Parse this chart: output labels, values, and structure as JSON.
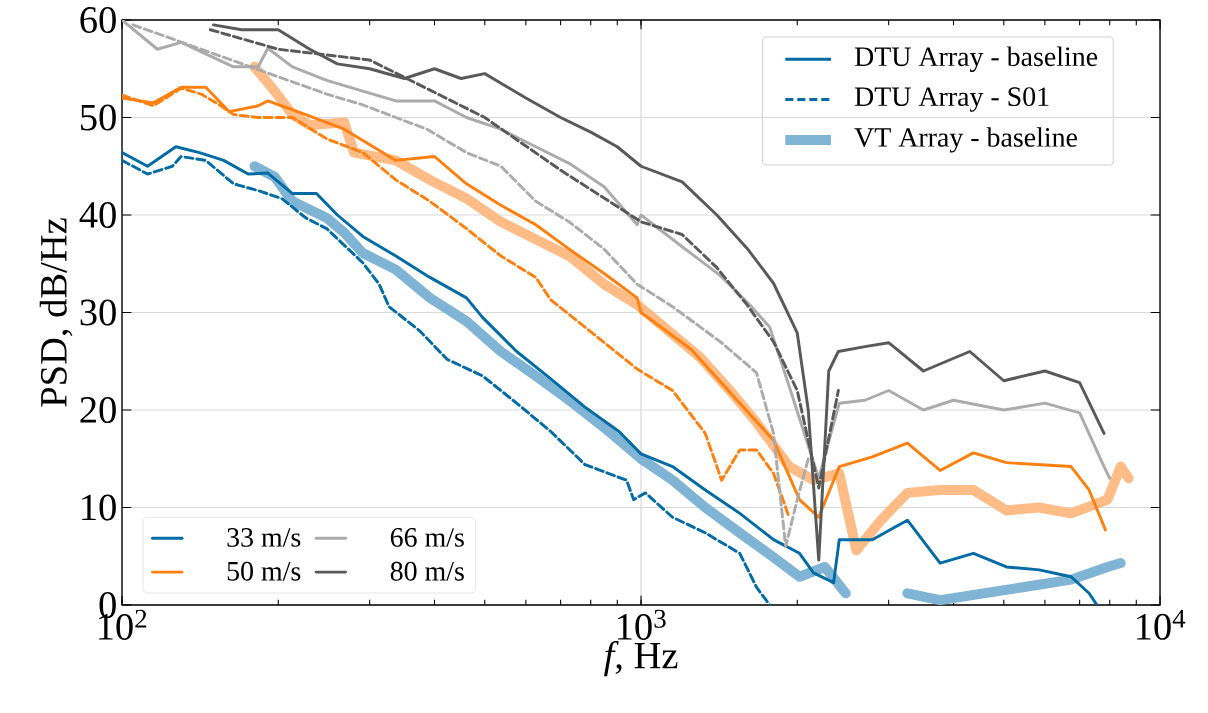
{
  "chart_data": {
    "type": "line",
    "xlabel": "*f*, Hz",
    "ylabel": "PSD, dB/Hz",
    "log": "x",
    "grid": true,
    "legend": "bottom left",
    "xlim": [
      100,
      10000
    ],
    "xticks": [
      {
        "value": 100,
        "label": "10$^{2}$"
      },
      {
        "value": 1000,
        "label": "10$^{3}$"
      },
      {
        "value": 10000,
        "label": "10$^{4}$"
      }
    ],
    "ylim": [
      0,
      60
    ],
    "yticks": [
      0,
      10,
      20,
      30,
      40,
      50,
      60
    ],
    "annotations": [
      "DTU Array - baseline",
      "DTU Array - S01",
      "VT Array - baseline"
    ],
    "series": [
      {
        "color": "#80b4d4",
        "line_style": "solid",
        "x": [
          180,
          197,
          213,
          248,
          268,
          291,
          337,
          392,
          461,
          537,
          627,
          727,
          849,
          1000,
          1150,
          1330,
          1550,
          1800,
          2020,
          2260,
          2480,
          2700,
          3260,
          3770,
          5400,
          6740,
          7920,
          8400
        ],
        "values": [
          45,
          43.9,
          41.4,
          39.7,
          38.2,
          36.1,
          34.4,
          31.5,
          29.1,
          26,
          23.5,
          21,
          18.2,
          15,
          12.8,
          10,
          7.4,
          4.9,
          2.9,
          3.9,
          1.2,
          null,
          1.2,
          0.5,
          1.8,
          2.6,
          3.9,
          4.3
        ]
      },
      {
        "color": "#ffbc86",
        "line_style": "solid",
        "x": [
          180,
          197,
          213,
          230,
          268,
          280,
          337,
          392,
          461,
          537,
          627,
          727,
          849,
          983,
          1300,
          1500,
          1670,
          1930,
          2150,
          2410,
          2600,
          2900,
          3260,
          3770,
          4370,
          5060,
          5850,
          6740,
          7920,
          8400,
          8700
        ],
        "values": [
          55.2,
          52.7,
          50.3,
          49.2,
          49.5,
          46.4,
          45.6,
          43.6,
          41.7,
          39.3,
          37.5,
          35.8,
          32.9,
          30.8,
          25.4,
          21.7,
          18.7,
          14.2,
          12.8,
          13.5,
          5.6,
          8.7,
          11.5,
          11.8,
          11.8,
          9.7,
          10,
          9.4,
          10.8,
          14.2,
          13
        ]
      },
      {
        "name": "33 m/s",
        "color": "#006ba4",
        "line_style": "solid",
        "x": [
          100,
          112,
          127,
          141,
          157,
          175,
          191,
          213,
          237,
          260,
          291,
          337,
          392,
          461,
          495,
          576,
          670,
          780,
          907,
          1000,
          1150,
          1330,
          1550,
          1800,
          2020,
          2150,
          2350,
          2410,
          2790,
          3260,
          3770,
          4370,
          5060,
          5850,
          6740,
          7300,
          7560
        ],
        "values": [
          46.4,
          45,
          47,
          46.4,
          45.6,
          44.2,
          44.3,
          42.2,
          42.2,
          40,
          37.8,
          35.8,
          33.6,
          31.5,
          29.5,
          26,
          23.2,
          20.3,
          17.8,
          15.5,
          14.2,
          11.8,
          9.4,
          6.7,
          5.3,
          3.3,
          2.3,
          6.7,
          6.7,
          8.7,
          4.3,
          5.3,
          3.9,
          3.6,
          2.9,
          1.2,
          0
        ]
      },
      {
        "name": "50 m/s",
        "color": "#ff800e",
        "line_style": "solid",
        "x": [
          100,
          115,
          130,
          145,
          161,
          183,
          191,
          226,
          268,
          337,
          400,
          461,
          537,
          627,
          727,
          849,
          983,
          1000,
          1250,
          1550,
          1800,
          2020,
          2200,
          2410,
          2790,
          3260,
          3770,
          4370,
          5060,
          6740,
          7300,
          7850
        ],
        "values": [
          52,
          51.5,
          53.1,
          53.1,
          50.6,
          51.2,
          51.7,
          50.3,
          48.8,
          45.6,
          46,
          43.2,
          41,
          39,
          36.5,
          34,
          31.5,
          30,
          26.2,
          20.7,
          16.9,
          10.8,
          9,
          14.2,
          15.2,
          16.6,
          13.8,
          15.6,
          14.6,
          14.2,
          11.8,
          7.7
        ]
      },
      {
        "name": "66 m/s",
        "color": "#ababab",
        "line_style": "solid",
        "x": [
          100,
          117,
          130,
          164,
          183,
          191,
          213,
          248,
          291,
          337,
          400,
          461,
          537,
          627,
          727,
          849,
          983,
          1000,
          1190,
          1420,
          1620,
          1770,
          1920,
          2200,
          2410,
          2700,
          3000,
          3500,
          4000,
          5000,
          6000,
          7000,
          7800,
          8000
        ],
        "values": [
          60,
          57,
          57.7,
          55.2,
          55.2,
          57.1,
          55.2,
          53.8,
          52.7,
          51.7,
          51.7,
          50,
          48.8,
          47,
          45.3,
          42.9,
          39,
          40,
          36.9,
          33.8,
          30.8,
          28.5,
          22.8,
          13,
          20.7,
          21,
          22,
          20,
          21,
          20,
          20.7,
          19.7,
          14.2,
          13
        ]
      },
      {
        "name": "80 m/s",
        "color": "#595959",
        "line_style": "solid",
        "x": [
          150,
          170,
          200,
          230,
          260,
          300,
          350,
          400,
          450,
          500,
          600,
          700,
          800,
          900,
          1000,
          1200,
          1400,
          1600,
          1800,
          2000,
          2100,
          2200,
          2300,
          2400,
          2700,
          3000,
          3500,
          4300,
          5000,
          6000,
          7000,
          7800
        ],
        "values": [
          59.5,
          59,
          59,
          57,
          55.5,
          55,
          54,
          55,
          54,
          54.5,
          52,
          50,
          48.5,
          47,
          45,
          43.4,
          40,
          36.6,
          33,
          27.9,
          20,
          4.6,
          24,
          26,
          26.5,
          26.9,
          24,
          26,
          23,
          24,
          22.8,
          17.6
        ]
      },
      {
        "color": "#006ba4",
        "line_style": "dashed",
        "x": [
          100,
          112,
          125,
          130,
          145,
          164,
          183,
          203,
          226,
          248,
          291,
          313,
          327,
          375,
          423,
          495,
          576,
          670,
          780,
          938,
          968,
          1020,
          1150,
          1330,
          1550,
          1670,
          1770
        ],
        "values": [
          45.6,
          44.2,
          45,
          46,
          45.6,
          43.2,
          42.5,
          41.7,
          39.7,
          38.6,
          35.1,
          32.9,
          30.6,
          28.1,
          25.2,
          23.5,
          20.7,
          17.8,
          14.4,
          12.8,
          10.8,
          11.5,
          9,
          7.4,
          5.3,
          1.8,
          0
        ]
      },
      {
        "color": "#ff800e",
        "line_style": "dashed",
        "x": [
          100,
          115,
          130,
          142,
          154,
          164,
          183,
          213,
          248,
          291,
          337,
          392,
          461,
          537,
          627,
          670,
          780,
          983,
          1150,
          1330,
          1430,
          1550,
          1670,
          1800,
          1930
        ],
        "values": [
          52.3,
          51.2,
          53,
          52.4,
          51.3,
          50.3,
          50,
          50,
          47.8,
          46.4,
          43.6,
          41.4,
          38.6,
          35.8,
          33.6,
          31.3,
          28.5,
          24.2,
          22,
          17.6,
          12.8,
          15.9,
          15.9,
          13.5,
          9
        ]
      },
      {
        "color": "#ababab",
        "line_style": "dashed",
        "x": [
          105,
          248,
          291,
          337,
          387,
          461,
          537,
          627,
          727,
          849,
          983,
          1150,
          1430,
          1670,
          1800,
          1900,
          2000,
          2100
        ],
        "values": [
          59.5,
          52.4,
          51.3,
          50,
          48.8,
          46.4,
          45,
          41.4,
          39.3,
          36.5,
          32.9,
          30.6,
          26.9,
          23.8,
          17.6,
          6,
          10.8,
          15
        ]
      },
      {
        "color": "#595959",
        "line_style": "dashed",
        "x": [
          148,
          200,
          300,
          500,
          700,
          1000,
          1200,
          1400,
          1600,
          1800,
          2000,
          2200,
          2400
        ],
        "values": [
          59,
          57,
          55.9,
          50,
          44.6,
          39.3,
          38,
          34.6,
          30.8,
          27,
          22,
          12,
          22
        ]
      }
    ]
  }
}
